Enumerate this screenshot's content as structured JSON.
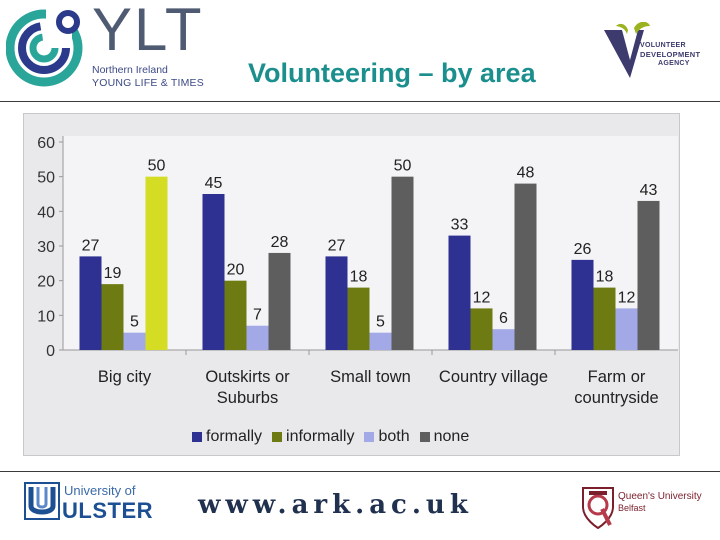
{
  "header": {
    "ylt_logo_text": "YLT",
    "ylt_sub_line1": "Northern Ireland",
    "ylt_sub_line2": "YOUNG LIFE & TIMES",
    "title": "Volunteering – by area",
    "vda_line1": "VOLUNTEER",
    "vda_line2": "DEVELOPMENT",
    "vda_line3": "AGENCY"
  },
  "footer": {
    "ulster_small": "University of",
    "ulster_big": "ULSTER",
    "website": "www.ark.ac.uk",
    "queens_line1": "Queen's University",
    "queens_line2": "Belfast"
  },
  "colors": {
    "formally": "#2e3092",
    "informally": "#6e7b13",
    "both": "#a3a9e6",
    "none": "#5e5e5e",
    "highlight": "#d4dd23",
    "title": "#1a8f8d"
  },
  "chart_data": {
    "type": "bar",
    "categories": [
      [
        "Big city"
      ],
      [
        "Outskirts or",
        "Suburbs"
      ],
      [
        "Small town"
      ],
      [
        "Country village"
      ],
      [
        "Farm or",
        "countryside"
      ]
    ],
    "series": [
      {
        "name": "formally",
        "values": [
          27,
          45,
          27,
          33,
          26
        ]
      },
      {
        "name": "informally",
        "values": [
          19,
          20,
          18,
          12,
          18
        ]
      },
      {
        "name": "both",
        "values": [
          5,
          7,
          5,
          6,
          12
        ]
      },
      {
        "name": "none",
        "values": [
          50,
          28,
          50,
          48,
          43
        ]
      }
    ],
    "highlighted_bar": {
      "category_index": 0,
      "series": "none",
      "color": "#d4dd23"
    },
    "ylim": [
      0,
      60
    ],
    "yticks": [
      0,
      10,
      20,
      30,
      40,
      50,
      60
    ],
    "grid": false,
    "legend_position": "bottom",
    "data_labels": true
  }
}
